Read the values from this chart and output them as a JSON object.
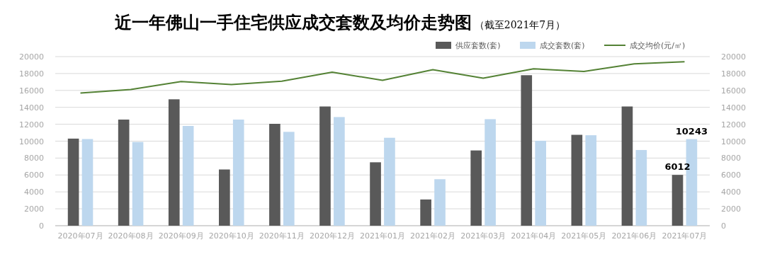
{
  "chart_data": {
    "type": "bar",
    "title": "近一年佛山一手住宅供应成交套数及均价走势图",
    "subtitle": "（截至2021年7月）",
    "categories": [
      "2020年07月",
      "2020年08月",
      "2020年09月",
      "2020年10月",
      "2020年11月",
      "2020年12月",
      "2021年01月",
      "2021年02月",
      "2021年03月",
      "2021年04月",
      "2021年05月",
      "2021年06月",
      "2021年07月"
    ],
    "series": [
      {
        "name": "供应套数(套)",
        "color": "#595959",
        "values": [
          10300,
          12550,
          14950,
          6650,
          12050,
          14100,
          7500,
          3100,
          8900,
          17800,
          10750,
          14100,
          6012
        ],
        "value_labels": [
          null,
          null,
          null,
          null,
          null,
          null,
          null,
          null,
          null,
          null,
          null,
          null,
          "6012"
        ]
      },
      {
        "name": "成交套数(套)",
        "color": "#bdd7ee",
        "values": [
          10250,
          9900,
          11800,
          12550,
          11100,
          12850,
          10400,
          5500,
          12600,
          10050,
          10700,
          8950,
          10243
        ],
        "value_labels": [
          null,
          null,
          null,
          null,
          null,
          null,
          null,
          null,
          null,
          null,
          null,
          null,
          "10243"
        ]
      },
      {
        "name": "成交均价(元/㎡)",
        "type": "line",
        "axis": "y2",
        "color": "#548235",
        "values": [
          15700,
          16100,
          17050,
          16700,
          17100,
          18150,
          17200,
          18450,
          17450,
          18550,
          18250,
          19150,
          19400
        ]
      }
    ],
    "ylim": [
      0,
      20000
    ],
    "yticks": [
      0,
      2000,
      4000,
      6000,
      8000,
      10000,
      12000,
      14000,
      16000,
      18000,
      20000
    ],
    "y2lim": [
      0,
      20000
    ],
    "y2ticks": [
      0,
      2000,
      4000,
      6000,
      8000,
      10000,
      12000,
      14000,
      16000,
      18000,
      20000
    ],
    "grid": "y",
    "legend": "top right"
  }
}
